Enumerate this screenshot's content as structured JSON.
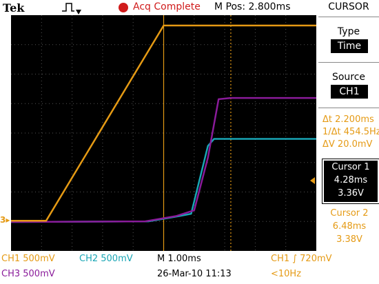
{
  "header": {
    "brand": "Tek",
    "trigger_icon": "pulse-trigger-icon",
    "acq_status": "Acq Complete",
    "position": "M Pos: 2.800ms"
  },
  "sidebar": {
    "title": "CURSOR",
    "type_label": "Type",
    "type_value": "Time",
    "source_label": "Source",
    "source_value": "CH1",
    "delta_t": "Δt 2.200ms",
    "freq": "1/Δt 454.5Hz",
    "delta_v": "ΔV 20.0mV",
    "cursor1": {
      "label": "Cursor 1",
      "time": "4.28ms",
      "volt": "3.36V"
    },
    "cursor2": {
      "label": "Cursor 2",
      "time": "6.48ms",
      "volt": "3.38V"
    }
  },
  "footer": {
    "ch1": "CH1  500mV",
    "ch2": "CH2  500mV",
    "ch3": "CH3  500mV",
    "time_div": "M 1.00ms",
    "trigger": "CH1 ∫ 720mV",
    "date": "26-Mar-10 11:13",
    "freq": "<10Hz"
  },
  "colors": {
    "ch1": "#e59a14",
    "ch2": "#19a6b5",
    "ch3": "#8a1b9a",
    "acq": "#d01b1b"
  },
  "chart_data": {
    "type": "line",
    "x_unit": "ms",
    "xlim": [
      -2.2,
      7.8
    ],
    "x_divisions": 10,
    "y_divisions": 8,
    "series": [
      {
        "name": "CH1",
        "points": [
          [
            -2.2,
            0.02
          ],
          [
            -1.05,
            0.02
          ],
          [
            2.8,
            3.36
          ],
          [
            7.8,
            3.36
          ]
        ]
      },
      {
        "name": "CH2",
        "points": [
          [
            -2.2,
            0.0
          ],
          [
            2.3,
            0.01
          ],
          [
            3.3,
            0.1
          ],
          [
            3.7,
            0.14
          ],
          [
            4.25,
            1.3
          ],
          [
            4.45,
            1.42
          ],
          [
            7.8,
            1.42
          ]
        ]
      },
      {
        "name": "CH3",
        "points": [
          [
            -2.2,
            0.0
          ],
          [
            2.2,
            0.01
          ],
          [
            3.2,
            0.1
          ],
          [
            3.8,
            0.2
          ],
          [
            4.25,
            1.1
          ],
          [
            4.6,
            2.1
          ],
          [
            5.0,
            2.12
          ],
          [
            7.8,
            2.12
          ]
        ]
      }
    ],
    "cursor_times_ms": [
      4.28,
      6.48
    ]
  }
}
